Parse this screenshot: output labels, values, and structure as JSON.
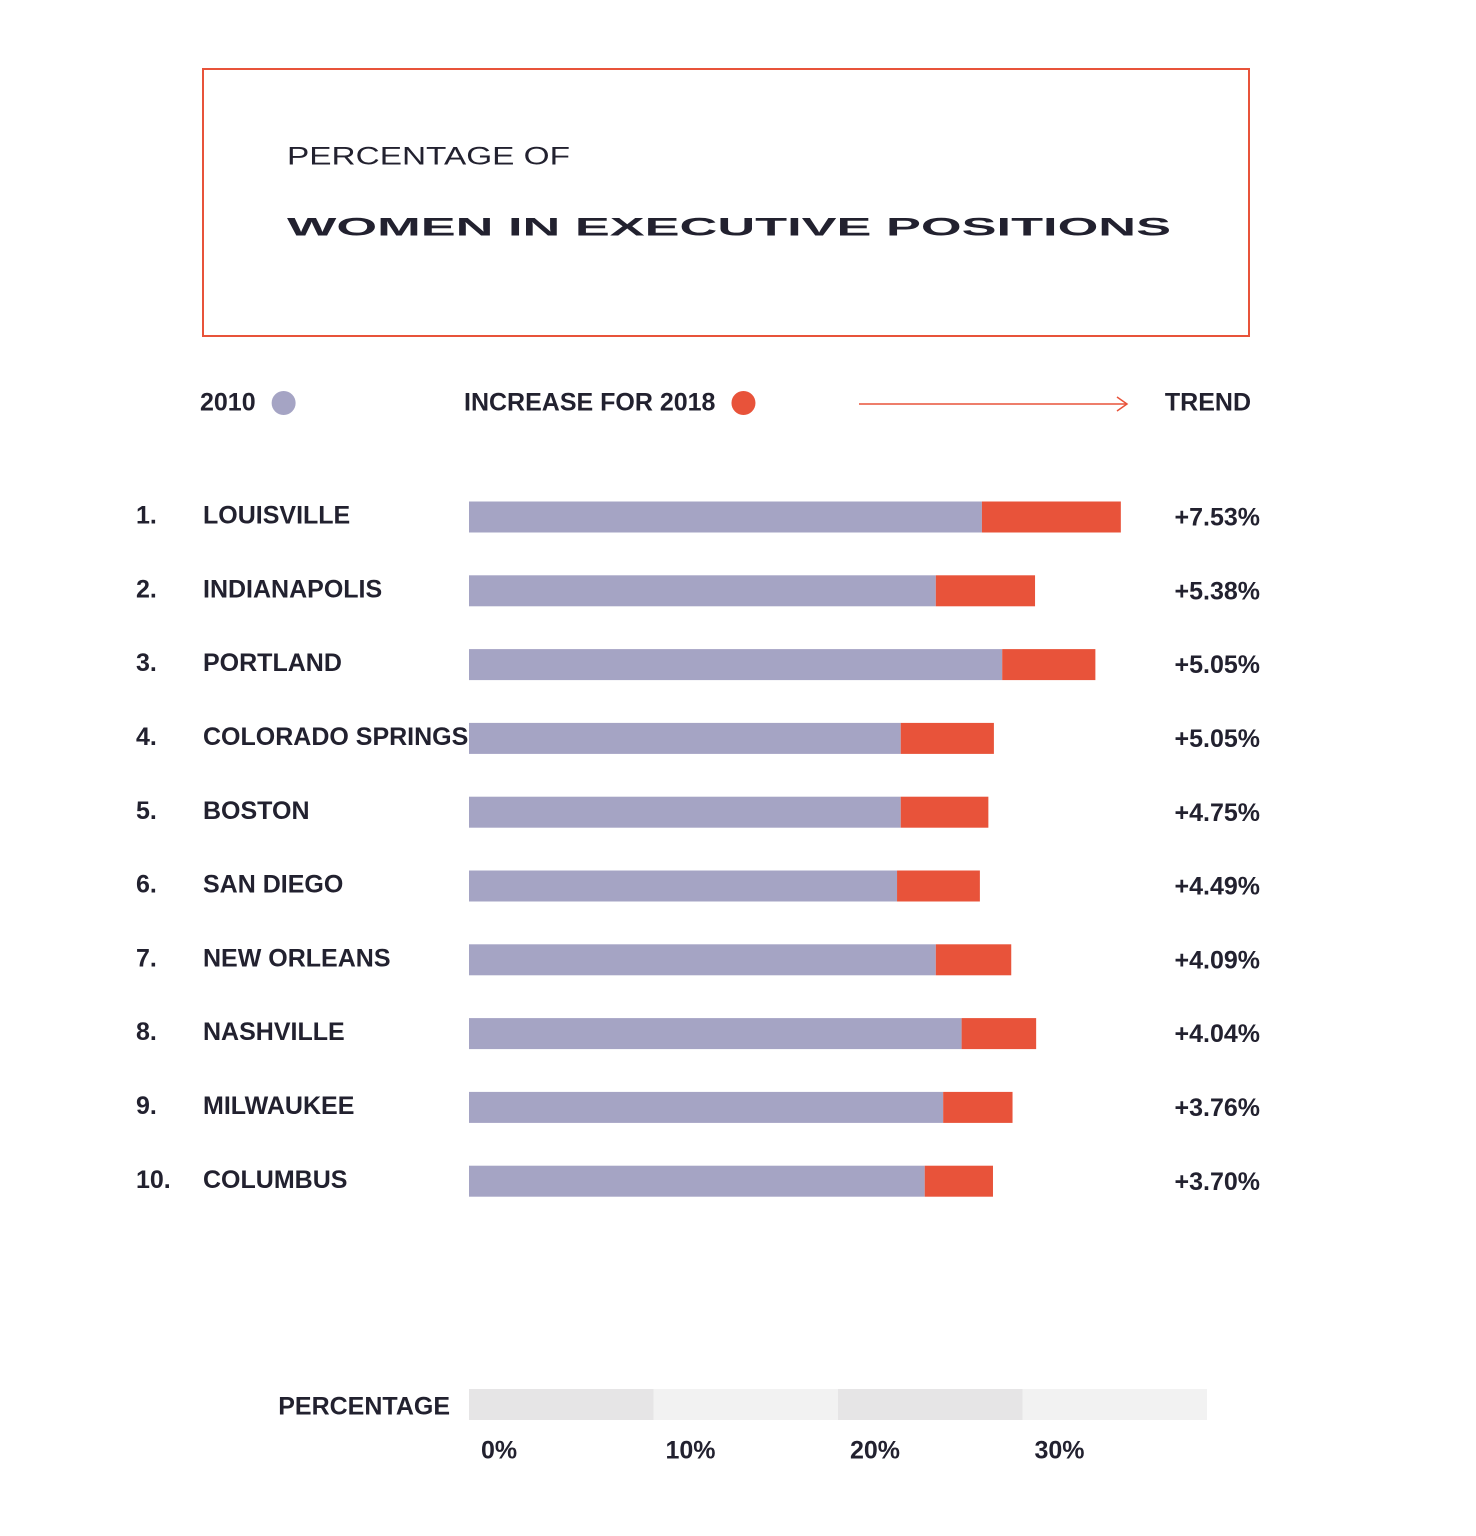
{
  "chart_data": {
    "type": "stacked-bar-horizontal",
    "supertitle": "PERCENTAGE OF",
    "title": "WOMEN IN EXECUTIVE POSITIONS",
    "trend_header": "TREND",
    "xlabel": "PERCENTAGE",
    "ranks": [
      "1.",
      "2.",
      "3.",
      "4.",
      "5.",
      "6.",
      "7.",
      "8.",
      "9.",
      "10."
    ],
    "categories": [
      "LOUISVILLE",
      "INDIANAPOLIS",
      "PORTLAND",
      "COLORADO SPRINGS",
      "BOSTON",
      "SAN DIEGO",
      "NEW ORLEANS",
      "NASHVILLE",
      "MILWAUKEE",
      "COLUMBUS"
    ],
    "series": [
      {
        "name": "2010",
        "color": "#a5a4c4",
        "values": [
          27.8,
          25.3,
          28.9,
          23.4,
          23.4,
          23.2,
          25.3,
          26.7,
          25.7,
          24.7
        ]
      },
      {
        "name": "INCREASE FOR 2018",
        "color": "#e8533a",
        "values": [
          7.53,
          5.38,
          5.05,
          5.05,
          4.75,
          4.49,
          4.09,
          4.04,
          3.76,
          3.7
        ],
        "value_labels": [
          "+7.53%",
          "+5.38%",
          "+5.05%",
          "+5.05%",
          "+4.75%",
          "+4.49%",
          "+4.09%",
          "+4.04%",
          "+3.76%",
          "+3.70%"
        ]
      }
    ],
    "xlim": [
      0,
      40
    ],
    "xticks": [
      {
        "value": 0,
        "label": "0%"
      },
      {
        "value": 10,
        "label": "10%"
      },
      {
        "value": 20,
        "label": "20%"
      },
      {
        "value": 30,
        "label": "30%"
      }
    ]
  }
}
